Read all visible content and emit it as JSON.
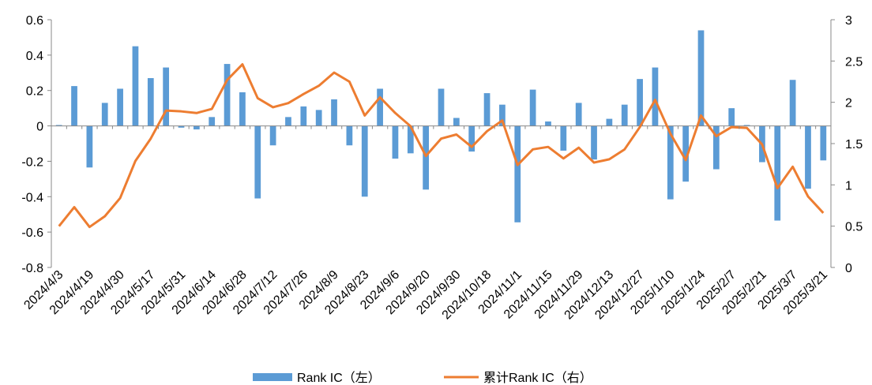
{
  "chart_data": {
    "type": "bar-line",
    "categories": [
      "2024/4/3",
      null,
      "2024/4/19",
      null,
      "2024/4/30",
      null,
      "2024/5/17",
      null,
      "2024/5/31",
      null,
      "2024/6/14",
      null,
      "2024/6/28",
      null,
      "2024/7/12",
      null,
      "2024/7/26",
      null,
      "2024/8/9",
      null,
      "2024/8/23",
      null,
      "2024/9/6",
      null,
      "2024/9/20",
      null,
      "2024/9/30",
      null,
      "2024/10/18",
      null,
      "2024/11/1",
      null,
      "2024/11/15",
      null,
      "2024/11/29",
      null,
      "2024/12/13",
      null,
      "2024/12/27",
      null,
      "2025/1/10",
      null,
      "2025/1/24",
      null,
      "2025/2/7",
      null,
      "2025/2/21",
      null,
      "2025/3/7",
      null,
      "2025/3/21"
    ],
    "series": [
      {
        "name": "Rank IC（左）",
        "color": "#5b9bd5",
        "type": "bar",
        "axis": "y",
        "values": [
          0.005,
          0.225,
          -0.235,
          0.13,
          0.21,
          0.45,
          0.27,
          0.33,
          -0.01,
          -0.02,
          0.05,
          0.35,
          0.19,
          -0.41,
          -0.11,
          0.05,
          0.11,
          0.09,
          0.15,
          -0.11,
          -0.4,
          0.21,
          -0.185,
          -0.155,
          -0.36,
          0.21,
          0.045,
          -0.145,
          0.185,
          0.12,
          -0.545,
          0.205,
          0.025,
          -0.14,
          0.13,
          -0.19,
          0.04,
          0.12,
          0.265,
          0.33,
          -0.415,
          -0.315,
          0.54,
          -0.245,
          0.1,
          0.005,
          -0.205,
          -0.535,
          0.26,
          -0.355,
          -0.195
        ]
      },
      {
        "name": "累计Rank IC（右）",
        "color": "#ed7d31",
        "type": "line",
        "axis": "y2",
        "values": [
          0.5,
          0.73,
          0.49,
          0.62,
          0.84,
          1.29,
          1.56,
          1.9,
          1.89,
          1.87,
          1.92,
          2.27,
          2.46,
          2.05,
          1.94,
          1.99,
          2.1,
          2.2,
          2.36,
          2.25,
          1.84,
          2.06,
          1.87,
          1.71,
          1.35,
          1.56,
          1.61,
          1.46,
          1.65,
          1.78,
          1.24,
          1.43,
          1.46,
          1.32,
          1.45,
          1.27,
          1.31,
          1.43,
          1.7,
          2.03,
          1.62,
          1.3,
          1.84,
          1.59,
          1.7,
          1.69,
          1.49,
          0.96,
          1.22,
          0.86,
          0.66
        ]
      }
    ],
    "ylim": [
      -0.8,
      0.6
    ],
    "yticks": [
      -0.8,
      -0.6,
      -0.4,
      -0.2,
      0,
      0.2,
      0.4,
      0.6
    ],
    "y2lim": [
      0,
      3
    ],
    "y2ticks": [
      0,
      0.5,
      1,
      1.5,
      2,
      2.5,
      3
    ]
  }
}
